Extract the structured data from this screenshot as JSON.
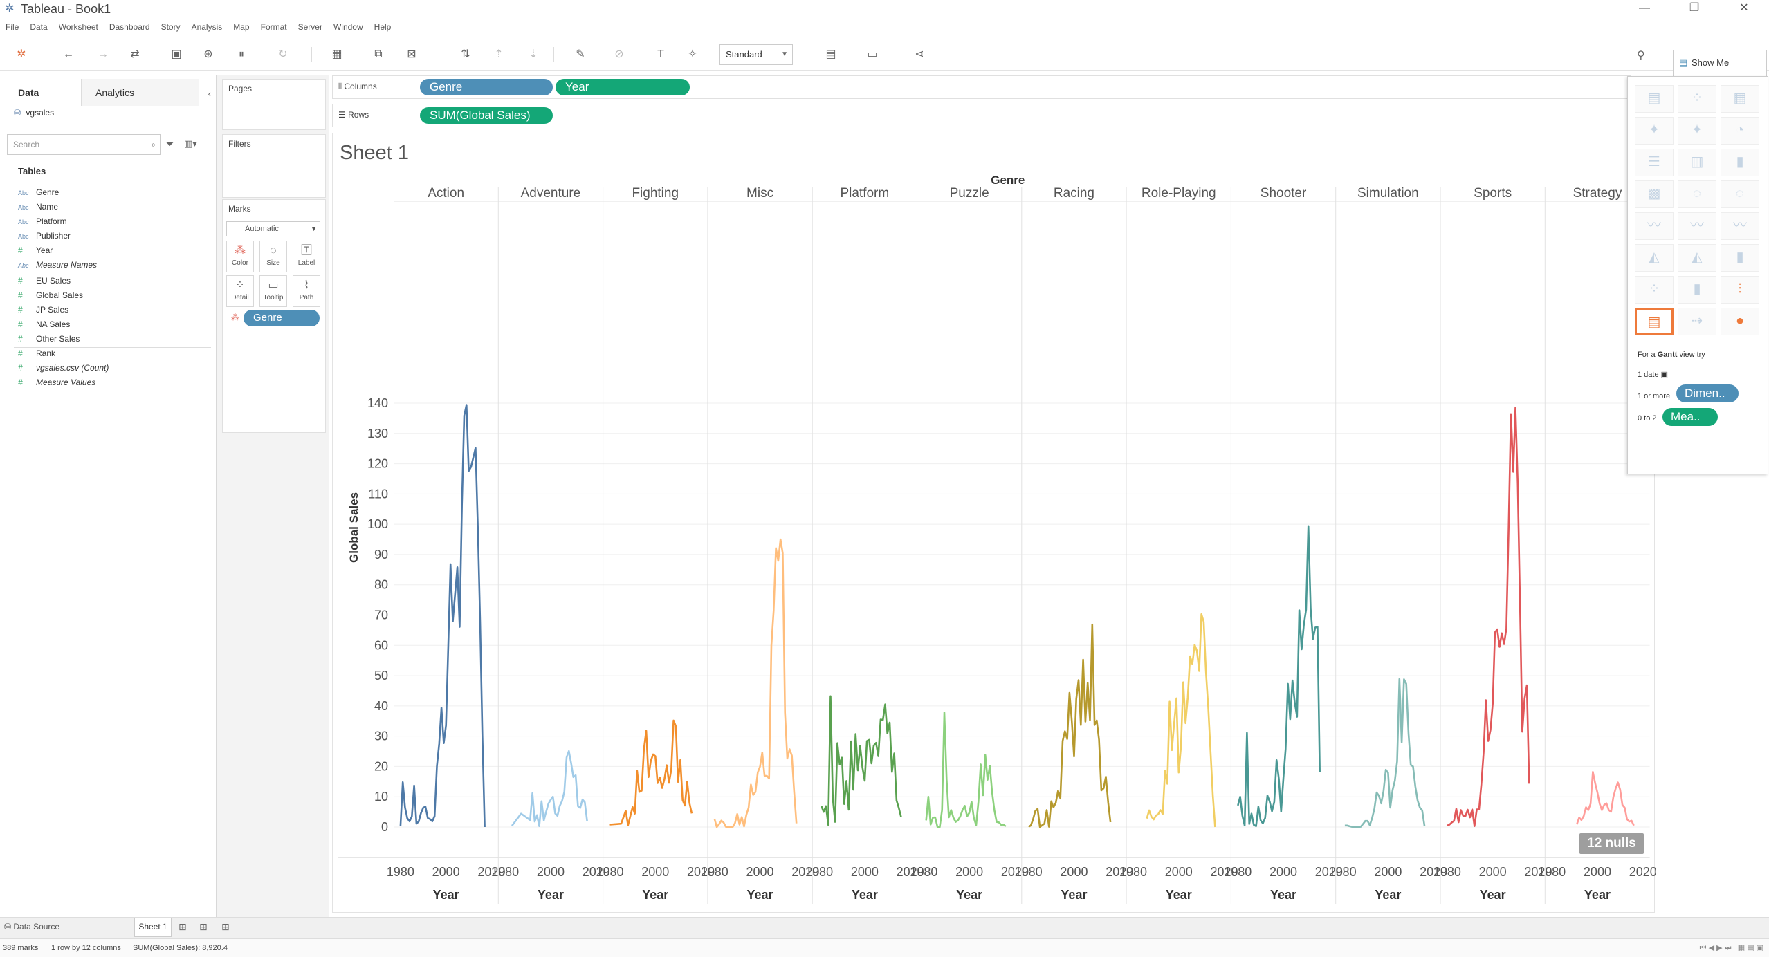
{
  "window": {
    "title": "Tableau - Book1",
    "logo_icon": "tableau-logo-icon",
    "minimize": "—",
    "restore": "❐",
    "close": "✕"
  },
  "menu": [
    "File",
    "Data",
    "Worksheet",
    "Dashboard",
    "Story",
    "Analysis",
    "Map",
    "Format",
    "Server",
    "Window",
    "Help"
  ],
  "toolbar": {
    "fit_value": "Standard"
  },
  "data_pane": {
    "tabs": {
      "data": "Data",
      "analytics": "Analytics"
    },
    "datasource": "vgsales",
    "search_placeholder": "Search",
    "tables_heading": "Tables",
    "dimensions": [
      {
        "type": "Abc",
        "name": "Genre"
      },
      {
        "type": "Abc",
        "name": "Name"
      },
      {
        "type": "Abc",
        "name": "Platform"
      },
      {
        "type": "Abc",
        "name": "Publisher"
      },
      {
        "type": "#",
        "name": "Year"
      },
      {
        "type": "Abc",
        "name": "Measure Names",
        "italic": true
      }
    ],
    "measures": [
      {
        "type": "#",
        "name": "EU Sales"
      },
      {
        "type": "#",
        "name": "Global Sales"
      },
      {
        "type": "#",
        "name": "JP Sales"
      },
      {
        "type": "#",
        "name": "NA Sales"
      },
      {
        "type": "#",
        "name": "Other Sales"
      },
      {
        "type": "#",
        "name": "Rank"
      },
      {
        "type": "#",
        "name": "vgsales.csv (Count)",
        "italic": true
      },
      {
        "type": "#",
        "name": "Measure Values",
        "italic": true
      }
    ]
  },
  "cards": {
    "pages": "Pages",
    "filters": "Filters",
    "marks": "Marks",
    "mark_type": "Automatic",
    "mark_buttons": [
      {
        "label": "Color",
        "icon": "color-icon"
      },
      {
        "label": "Size",
        "icon": "size-icon"
      },
      {
        "label": "Label",
        "icon": "label-icon"
      },
      {
        "label": "Detail",
        "icon": "detail-icon"
      },
      {
        "label": "Tooltip",
        "icon": "tooltip-icon"
      },
      {
        "label": "Path",
        "icon": "path-icon"
      }
    ],
    "color_pill": "Genre"
  },
  "shelves": {
    "columns_label": "Columns",
    "rows_label": "Rows",
    "columns_pills": [
      "Genre",
      "Year"
    ],
    "rows_pills": [
      "SUM(Global Sales)"
    ]
  },
  "sheet": {
    "title": "Sheet 1",
    "nulls": "12 nulls"
  },
  "show_me": {
    "tab": "Show Me",
    "hint_prefix": "For a ",
    "hint_bold": "Gantt",
    "hint_suffix": " view try",
    "req_date": "1 date",
    "req_dim": "1 or more",
    "req_mea": "0 to 2",
    "dim_pill": "Dimen..",
    "mea_pill": "Mea.."
  },
  "bottom": {
    "data_source_tab": "Data Source",
    "sheet_tab": "Sheet 1"
  },
  "status": {
    "marks": "389 marks",
    "rows_cols": "1 row by 12 columns",
    "sum": "SUM(Global Sales): 8,920.4"
  },
  "chart_data": {
    "type": "line",
    "column_header_title": "Genre",
    "ylabel": "Global Sales",
    "xlabel": "Year",
    "x_ticks": [
      1980,
      2000,
      2020
    ],
    "ylim": [
      0,
      140
    ],
    "y_ticks": [
      0,
      10,
      20,
      30,
      40,
      50,
      60,
      70,
      80,
      90,
      100,
      110,
      120,
      130,
      140
    ],
    "panels": [
      {
        "name": "Action",
        "color": "#4e79a7",
        "x": [
          1980,
          1981,
          1982,
          1983,
          1984,
          1985,
          1986,
          1987,
          1988,
          1989,
          1990,
          1991,
          1992,
          1993,
          1994,
          1995,
          1996,
          1997,
          1998,
          1999,
          2000,
          2001,
          2002,
          2003,
          2004,
          2005,
          2006,
          2007,
          2008,
          2009,
          2010,
          2011,
          2012,
          2013,
          2014,
          2015,
          2016,
          2017
        ],
        "y": [
          0.3,
          14.8,
          6.5,
          2.9,
          1.9,
          3.5,
          13.7,
          1.1,
          1.8,
          4.6,
          6.4,
          6.7,
          3,
          2.6,
          1.9,
          3.6,
          20,
          27.5,
          39.4,
          27.7,
          33.6,
          59.4,
          86.8,
          67.9,
          76.9,
          85.8,
          66.1,
          106.5,
          135.9,
          139.4,
          117.6,
          118.9,
          122,
          125.2,
          99,
          67.8,
          30.1,
          0
        ]
      },
      {
        "name": "Adventure",
        "color": "#a0cbe8",
        "x": [
          1983,
          1987,
          1991,
          1992,
          1993,
          1994,
          1995,
          1996,
          1997,
          1998,
          1999,
          2000,
          2001,
          2002,
          2003,
          2004,
          2005,
          2006,
          2007,
          2008,
          2009,
          2010,
          2011,
          2012,
          2013,
          2014,
          2015,
          2016
        ],
        "y": [
          0.4,
          4.4,
          2.3,
          11.2,
          1.8,
          3.9,
          0.3,
          8.5,
          2.2,
          5,
          7.7,
          9,
          10,
          4.5,
          3.7,
          7,
          8.6,
          11.6,
          23,
          25.1,
          21,
          16.5,
          17.1,
          6.9,
          6.3,
          9.1,
          8.2,
          2
        ]
      },
      {
        "name": "Fighting",
        "color": "#f28e2b",
        "x": [
          1980,
          1985,
          1987,
          1988,
          1990,
          1991,
          1992,
          1993,
          1994,
          1995,
          1996,
          1997,
          1998,
          1999,
          2000,
          2001,
          2002,
          2003,
          2004,
          2005,
          2006,
          2007,
          2008,
          2009,
          2010,
          2011,
          2012,
          2013,
          2014,
          2015,
          2016
        ],
        "y": [
          0.8,
          1.1,
          5.4,
          0.6,
          6.6,
          4.4,
          18.6,
          11.6,
          12,
          25.8,
          31.8,
          16.5,
          21.8,
          24,
          23.4,
          14.5,
          16.4,
          12.9,
          15.8,
          20.4,
          14.6,
          18.9,
          35.2,
          33.3,
          14.9,
          22.1,
          8.9,
          7.1,
          15,
          7.9,
          4.5
        ]
      },
      {
        "name": "Misc",
        "color": "#ffbe7d",
        "x": [
          1980,
          1981,
          1982,
          1983,
          1984,
          1985,
          1986,
          1987,
          1988,
          1989,
          1990,
          1991,
          1992,
          1993,
          1994,
          1995,
          1996,
          1997,
          1998,
          1999,
          2000,
          2001,
          2002,
          2003,
          2004,
          2005,
          2006,
          2007,
          2008,
          2009,
          2010,
          2011,
          2012,
          2013,
          2014,
          2015,
          2016
        ],
        "y": [
          2.7,
          0,
          0.9,
          2.1,
          1.5,
          0.1,
          0,
          0,
          0,
          1.3,
          4.3,
          0.8,
          3.3,
          0.2,
          4,
          6.4,
          14,
          10.6,
          11.6,
          18,
          20,
          24.6,
          16.9,
          16.9,
          16,
          59.9,
          71.6,
          92.1,
          87.9,
          95,
          90.4,
          37.8,
          22.6,
          25.7,
          23.6,
          11.7,
          1.2
        ]
      },
      {
        "name": "Platform",
        "color": "#59a14f",
        "x": [
          1981,
          1982,
          1983,
          1984,
          1985,
          1986,
          1987,
          1988,
          1989,
          1990,
          1991,
          1992,
          1993,
          1994,
          1995,
          1996,
          1997,
          1998,
          1999,
          2000,
          2001,
          2002,
          2003,
          2004,
          2005,
          2006,
          2007,
          2008,
          2009,
          2010,
          2011,
          2012,
          2013,
          2014,
          2015,
          2016
        ],
        "y": [
          6.9,
          5,
          6.9,
          0.7,
          43.2,
          9.4,
          1.7,
          27.7,
          20.7,
          22.9,
          7.6,
          15.2,
          5.7,
          28.3,
          12.3,
          30.7,
          18.7,
          26.8,
          19.7,
          15.3,
          28.4,
          28.8,
          21,
          26.9,
          27.8,
          23.4,
          35.5,
          35.4,
          40.5,
          30.9,
          34.5,
          18.2,
          24.3,
          8.8,
          6.3,
          3.3
        ]
      },
      {
        "name": "Puzzle",
        "color": "#8cd17d",
        "x": [
          1981,
          1982,
          1983,
          1984,
          1985,
          1986,
          1987,
          1988,
          1989,
          1990,
          1991,
          1992,
          1993,
          1994,
          1995,
          1996,
          1997,
          1998,
          1999,
          2000,
          2001,
          2002,
          2003,
          2004,
          2005,
          2006,
          2007,
          2008,
          2009,
          2010,
          2011,
          2012,
          2013,
          2014,
          2015,
          2016
        ],
        "y": [
          2.2,
          10,
          0.8,
          3.1,
          3.2,
          0,
          0,
          5.6,
          37.8,
          15.7,
          3.2,
          5.6,
          3.1,
          1.7,
          2.2,
          3.5,
          5.6,
          7,
          3.5,
          4.7,
          8.3,
          3,
          0.6,
          8.4,
          20.7,
          10.5,
          23.8,
          15.6,
          20.2,
          11.6,
          5.6,
          1.7,
          1.5,
          0.7,
          0.8,
          0.2
        ]
      },
      {
        "name": "Racing",
        "color": "#b6992d",
        "x": [
          1980,
          1981,
          1982,
          1983,
          1984,
          1985,
          1986,
          1987,
          1988,
          1989,
          1990,
          1991,
          1992,
          1993,
          1994,
          1995,
          1996,
          1997,
          1998,
          1999,
          2000,
          2001,
          2002,
          2003,
          2004,
          2005,
          2006,
          2007,
          2008,
          2009,
          2010,
          2011,
          2012,
          2013,
          2014,
          2015,
          2016
        ],
        "y": [
          0.1,
          0.5,
          2.5,
          5.3,
          6,
          0,
          0.6,
          1.1,
          5.6,
          0.1,
          8.5,
          6.5,
          8,
          12,
          9.4,
          28.4,
          31.6,
          29.1,
          44.3,
          35.1,
          23.3,
          42.3,
          48.5,
          33.7,
          55.3,
          34.8,
          47.6,
          35.3,
          66.9,
          33.7,
          35.2,
          28.8,
          12.1,
          12.8,
          16.6,
          8.1,
          1.6
        ]
      },
      {
        "name": "Role-Playing",
        "color": "#f1ce63",
        "x": [
          1986,
          1987,
          1988,
          1989,
          1990,
          1991,
          1992,
          1993,
          1994,
          1995,
          1996,
          1997,
          1998,
          1999,
          2000,
          2001,
          2002,
          2003,
          2004,
          2005,
          2006,
          2007,
          2008,
          2009,
          2010,
          2011,
          2012,
          2013,
          2014,
          2015,
          2016
        ],
        "y": [
          2.8,
          5.5,
          3.4,
          2.5,
          3.8,
          4.2,
          5.6,
          4.3,
          18.6,
          14.3,
          41.4,
          25.4,
          34.3,
          42.5,
          18,
          26.5,
          47.8,
          34.3,
          42.9,
          56.4,
          53.8,
          60.2,
          58.2,
          51.5,
          70.3,
          67.8,
          51,
          39.4,
          24.8,
          10.4,
          0
        ]
      },
      {
        "name": "Shooter",
        "color": "#499894",
        "x": [
          1980,
          1981,
          1982,
          1983,
          1984,
          1985,
          1986,
          1987,
          1988,
          1989,
          1990,
          1991,
          1992,
          1993,
          1994,
          1995,
          1996,
          1997,
          1998,
          1999,
          2000,
          2001,
          2002,
          2003,
          2004,
          2005,
          2006,
          2007,
          2008,
          2009,
          2010,
          2011,
          2012,
          2013,
          2014,
          2015,
          2016
        ],
        "y": [
          7.1,
          10,
          3.8,
          0.5,
          31.1,
          1,
          4.4,
          0.7,
          0.3,
          6.7,
          2.2,
          1.2,
          3,
          10.4,
          8.4,
          5.2,
          8.3,
          22.1,
          15.9,
          5.1,
          16.1,
          25.8,
          47.3,
          35.6,
          48.4,
          41.1,
          36.4,
          71.6,
          58.7,
          66.9,
          71.8,
          99.4,
          72.1,
          62.1,
          65.9,
          66.1,
          18.1
        ]
      },
      {
        "name": "Simulation",
        "color": "#86bcb6",
        "x": [
          1981,
          1982,
          1983,
          1984,
          1985,
          1986,
          1987,
          1988,
          1989,
          1990,
          1991,
          1992,
          1993,
          1994,
          1995,
          1996,
          1997,
          1998,
          1999,
          2000,
          2001,
          2002,
          2003,
          2004,
          2005,
          2006,
          2007,
          2008,
          2009,
          2010,
          2011,
          2012,
          2013,
          2014,
          2015,
          2016
        ],
        "y": [
          0.5,
          0.5,
          0.3,
          0.1,
          0,
          0,
          0,
          0.1,
          1,
          2,
          2,
          0.6,
          2.9,
          6,
          11.4,
          10.3,
          7.8,
          11.8,
          18.9,
          17.9,
          6.4,
          12.2,
          15.3,
          21.7,
          48.9,
          28,
          48.8,
          47.3,
          30.8,
          20.5,
          20,
          13.4,
          8.8,
          6.4,
          5.5,
          0.4
        ]
      },
      {
        "name": "Sports",
        "color": "#e15759",
        "x": [
          1980,
          1981,
          1982,
          1983,
          1984,
          1985,
          1986,
          1987,
          1988,
          1989,
          1990,
          1991,
          1992,
          1993,
          1994,
          1995,
          1996,
          1997,
          1998,
          1999,
          2000,
          2001,
          2002,
          2003,
          2004,
          2005,
          2006,
          2007,
          2008,
          2009,
          2010,
          2011,
          2012,
          2013,
          2014,
          2015,
          2016
        ],
        "y": [
          0.5,
          0.8,
          1.5,
          2,
          6,
          1.6,
          5.6,
          3.7,
          3.6,
          5.7,
          3.2,
          5.8,
          0.3,
          5.8,
          5.8,
          14,
          24.6,
          41.9,
          28.4,
          32,
          40.8,
          64.3,
          65.3,
          59.5,
          64,
          60.4,
          65.6,
          99.1,
          136.4,
          117.3,
          138.5,
          113.6,
          74,
          31.5,
          42.4,
          46.8,
          14.3
        ]
      },
      {
        "name": "Strategy",
        "color": "#ff9d9a",
        "x": [
          1991,
          1992,
          1993,
          1994,
          1995,
          1996,
          1997,
          1998,
          1999,
          2000,
          2001,
          2002,
          2003,
          2004,
          2005,
          2006,
          2007,
          2008,
          2009,
          2010,
          2011,
          2012,
          2013,
          2014,
          2015,
          2016
        ],
        "y": [
          0.9,
          3.1,
          2.3,
          3.6,
          6.5,
          5.6,
          7.7,
          18.2,
          14.5,
          11.4,
          7.7,
          5.6,
          7.3,
          7.8,
          5.6,
          5,
          9.9,
          12.7,
          14.7,
          12.4,
          7.3,
          6.4,
          2.6,
          1.8,
          2.1,
          0.5
        ]
      }
    ]
  }
}
